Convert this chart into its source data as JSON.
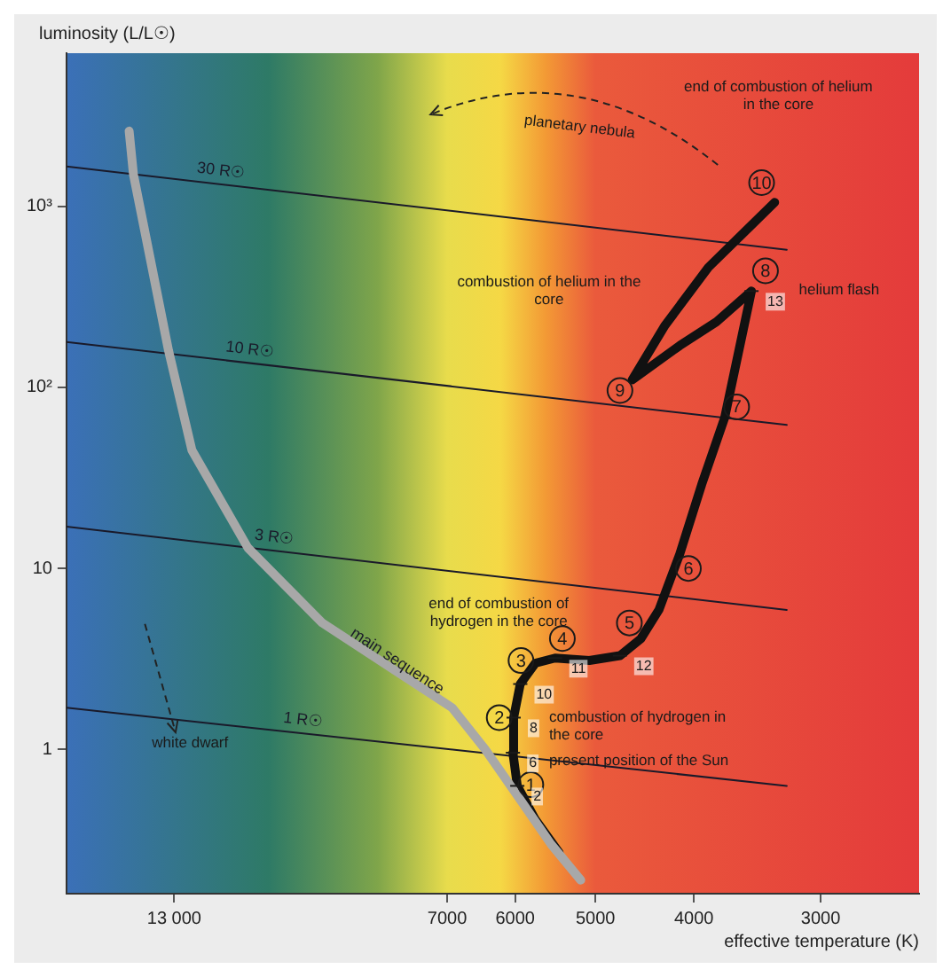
{
  "chart_data": {
    "type": "line",
    "xlabel": "effective temperature (K)",
    "ylabel": "luminosity (L/L☉)",
    "xlim": [
      16600,
      2400
    ],
    "xticks": [
      {
        "value": 13000,
        "label": "13 000"
      },
      7000,
      6000,
      5000,
      4000,
      3000
    ],
    "ylim": [
      0.16,
      7000
    ],
    "yticks": [
      1,
      10,
      {
        "value": 100,
        "label": "10²"
      },
      {
        "value": 1000,
        "label": "10³"
      }
    ],
    "log": "xy",
    "grid": false,
    "legend": false,
    "marker": "none",
    "line_style": "solid",
    "series": [
      {
        "name": "main sequence",
        "color": "#a8a8a8",
        "x": [
          14400,
          14260,
          13170,
          12490,
          11000,
          9290,
          6920,
          6420,
          5890,
          5530,
          5170
        ],
        "values": [
          2600,
          1500,
          160,
          45,
          13,
          5.0,
          1.7,
          1.0,
          0.5,
          0.3,
          0.19
        ]
      },
      {
        "color": "#111111",
        "x": [
          5430,
          5730,
          5970,
          6030,
          6020,
          5930,
          5730,
          5480,
          5070,
          4730,
          4510,
          4330,
          4130,
          3930,
          3730,
          3510,
          3800,
          4130,
          4600,
          4270,
          3870,
          3330
        ],
        "values": [
          0.27,
          0.41,
          0.63,
          0.96,
          1.5,
          2.3,
          3.0,
          3.2,
          3.1,
          3.3,
          4.1,
          5.9,
          12,
          29,
          68,
          340,
          230,
          170,
          110,
          220,
          460,
          1050
        ]
      },
      {
        "name": "30 R☉",
        "color": "#1a1a2a",
        "x": [
          16600,
          3240
        ],
        "values": [
          1660,
          575
        ]
      },
      {
        "name": "10 R☉",
        "color": "#1a1a2a",
        "x": [
          16600,
          3240
        ],
        "values": [
          178,
          62
        ]
      },
      {
        "name": "3 R☉",
        "color": "#1a1a2a",
        "x": [
          16600,
          3240
        ],
        "values": [
          17,
          5.9
        ]
      },
      {
        "name": "1 R☉",
        "color": "#1a1a2a",
        "x": [
          16600,
          3240
        ],
        "values": [
          1.7,
          0.63
        ]
      }
    ],
    "annotations": [
      {
        "text": "1",
        "x": 5790,
        "y": 0.64
      },
      {
        "text": "2",
        "x": 6220,
        "y": 1.5
      },
      {
        "text": "3",
        "x": 5920,
        "y": 3.1
      },
      {
        "text": "4",
        "x": 5390,
        "y": 4.1
      },
      {
        "text": "5",
        "x": 4630,
        "y": 5.0
      },
      {
        "text": "6",
        "x": 4050,
        "y": 10
      },
      {
        "text": "7",
        "x": 3630,
        "y": 78
      },
      {
        "text": "8",
        "x": 3400,
        "y": 440
      },
      {
        "text": "9",
        "x": 4730,
        "y": 96
      },
      {
        "text": "10",
        "x": 3430,
        "y": 1350
      },
      {
        "text": "2",
        "x": 5970,
        "y": 0.63
      },
      {
        "text": "6",
        "x": 6030,
        "y": 0.96
      },
      {
        "text": "8",
        "x": 6020,
        "y": 1.5
      },
      {
        "text": "10",
        "x": 5930,
        "y": 2.3
      },
      {
        "text": "11",
        "x": 5480,
        "y": 3.2
      },
      {
        "text": "12",
        "x": 4730,
        "y": 3.3
      },
      {
        "text": "13",
        "x": 3510,
        "y": 340
      },
      "end of combustion of hydrogen in the core",
      "combustion of hydrogen in the core",
      "present position of the Sun",
      "helium flash",
      "combustion of helium in the core",
      "end of combustion of helium in the core",
      "planetary nebula",
      "white dwarf"
    ]
  }
}
